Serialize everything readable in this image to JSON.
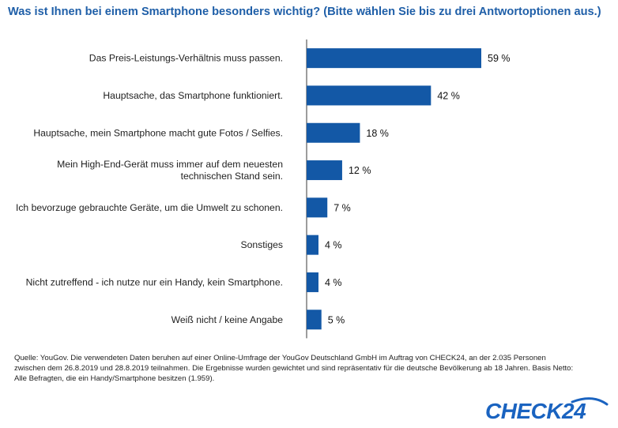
{
  "title": "Was ist Ihnen bei einem Smartphone besonders wichtig? (Bitte wählen Sie bis zu drei Antwortoptionen aus.)",
  "colors": {
    "bar": "#1358a6",
    "title": "#1f5fa8",
    "axis": "#3a3a3a",
    "logo": "#1a63c0"
  },
  "chart_data": {
    "type": "bar",
    "orientation": "horizontal",
    "categories": [
      [
        "Das Preis-Leistungs-Verhältnis muss passen."
      ],
      [
        "Hauptsache, das Smartphone funktioniert."
      ],
      [
        "Hauptsache, mein Smartphone macht gute Fotos / Selfies."
      ],
      [
        "Mein High-End-Gerät muss immer auf dem neuesten",
        "technischen Stand sein."
      ],
      [
        "Ich bevorzuge gebrauchte Geräte, um die Umwelt zu schonen."
      ],
      [
        "Sonstiges"
      ],
      [
        "Nicht zutreffend - ich nutze nur ein Handy, kein Smartphone."
      ],
      [
        "Weiß nicht / keine Angabe"
      ]
    ],
    "values": [
      59,
      42,
      18,
      12,
      7,
      4,
      4,
      5
    ],
    "value_labels": [
      "59 %",
      "42 %",
      "18 %",
      "12 %",
      "7 %",
      "4 %",
      "4 %",
      "5 %"
    ],
    "xlim": [
      0,
      100
    ],
    "grid": false
  },
  "footer": {
    "lines": [
      "Quelle: YouGov. Die verwendeten Daten beruhen auf einer Online-Umfrage der YouGov Deutschland GmbH im Auftrag von CHECK24, an der 2.035 Personen",
      "zwischen dem 26.8.2019 und 28.8.2019 teilnahmen. Die Ergebnisse wurden gewichtet und sind repräsentativ für die deutsche Bevölkerung ab 18 Jahren. Basis Netto:",
      "Alle Befragten, die ein Handy/Smartphone besitzen (1.959)."
    ]
  },
  "logo": {
    "text": "CHECK24"
  }
}
